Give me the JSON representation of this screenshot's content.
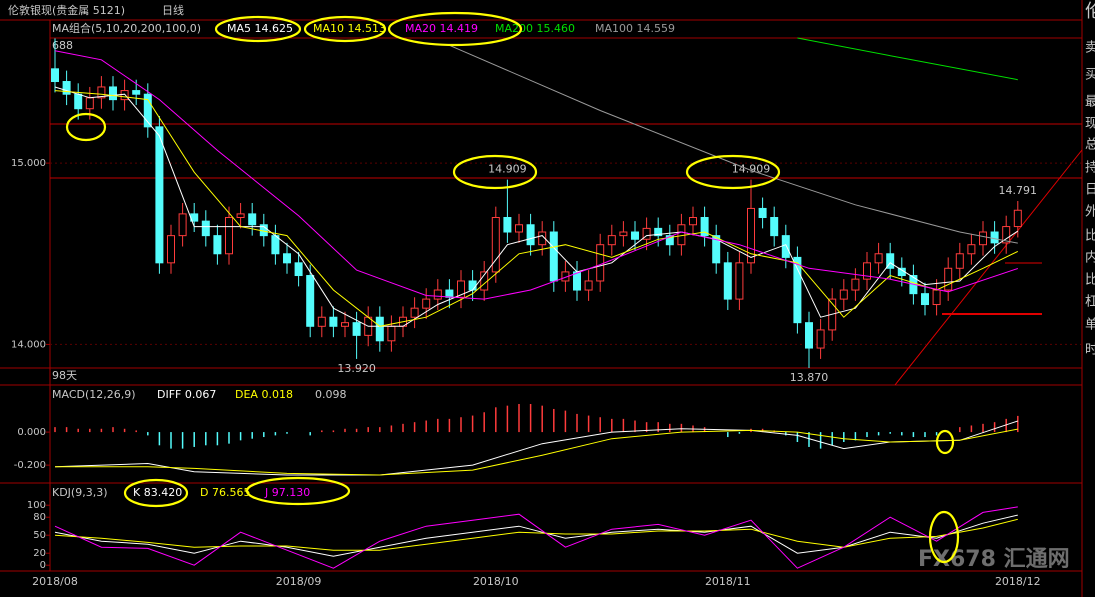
{
  "chart_data": [
    {
      "type": "candlestick",
      "title": "伦敦银现(贵金属 5121)",
      "period": "日线",
      "indicator": "MA组合(5,10,20,200,100,0)",
      "span_label": "98天",
      "top_label": "688",
      "categories": [
        "2018/08",
        null,
        null,
        null,
        null,
        null,
        null,
        null,
        null,
        null,
        null,
        null,
        null,
        null,
        null,
        null,
        null,
        null,
        null,
        null,
        null,
        "2018/09",
        null,
        null,
        null,
        null,
        null,
        null,
        null,
        null,
        null,
        null,
        null,
        null,
        null,
        null,
        null,
        null,
        "2018/10",
        null,
        null,
        null,
        null,
        null,
        null,
        null,
        null,
        null,
        null,
        null,
        null,
        null,
        null,
        null,
        null,
        null,
        null,
        null,
        "2018/11",
        null,
        null,
        null,
        null,
        null,
        null,
        null,
        null,
        null,
        null,
        null,
        null,
        null,
        null,
        null,
        null,
        null,
        null,
        null,
        null,
        null,
        null,
        null,
        null,
        "2018/12"
      ],
      "open": [
        15.52,
        15.45,
        15.38,
        15.3,
        15.36,
        15.42,
        15.35,
        15.4,
        15.38,
        15.2,
        14.45,
        14.6,
        14.72,
        14.68,
        14.6,
        14.5,
        14.7,
        14.72,
        14.66,
        14.6,
        14.5,
        14.45,
        14.38,
        14.1,
        14.15,
        14.1,
        14.12,
        14.05,
        14.15,
        14.02,
        14.1,
        14.15,
        14.2,
        14.25,
        14.3,
        14.26,
        14.35,
        14.3,
        14.4,
        14.7,
        14.62,
        14.66,
        14.55,
        14.62,
        14.35,
        14.4,
        14.3,
        14.35,
        14.55,
        14.6,
        14.62,
        14.58,
        14.64,
        14.6,
        14.55,
        14.66,
        14.7,
        14.6,
        14.45,
        14.25,
        14.45,
        14.75,
        14.7,
        14.6,
        14.48,
        14.12,
        13.98,
        14.08,
        14.25,
        14.3,
        14.36,
        14.45,
        14.5,
        14.42,
        14.38,
        14.28,
        14.22,
        14.3,
        14.42,
        14.5,
        14.55,
        14.62,
        14.56,
        14.65
      ],
      "high": [
        15.688,
        15.51,
        15.44,
        15.42,
        15.48,
        15.48,
        15.46,
        15.46,
        15.44,
        15.26,
        14.66,
        14.78,
        14.78,
        14.74,
        14.66,
        14.76,
        14.78,
        14.78,
        14.72,
        14.66,
        14.56,
        14.51,
        14.44,
        14.21,
        14.21,
        14.18,
        14.18,
        14.21,
        14.21,
        14.16,
        14.21,
        14.26,
        14.31,
        14.36,
        14.36,
        14.41,
        14.41,
        14.46,
        14.76,
        14.909,
        14.72,
        14.72,
        14.68,
        14.68,
        14.46,
        14.46,
        14.41,
        14.61,
        14.66,
        14.68,
        14.68,
        14.7,
        14.7,
        14.66,
        14.72,
        14.76,
        14.76,
        14.66,
        14.51,
        14.51,
        14.909,
        14.81,
        14.76,
        14.66,
        14.54,
        14.18,
        14.14,
        14.31,
        14.36,
        14.42,
        14.51,
        14.56,
        14.56,
        14.48,
        14.44,
        14.34,
        14.36,
        14.48,
        14.56,
        14.61,
        14.68,
        14.68,
        14.71,
        14.791
      ],
      "low": [
        15.39,
        15.32,
        15.24,
        15.24,
        15.3,
        15.29,
        15.29,
        15.32,
        15.14,
        14.39,
        14.39,
        14.54,
        14.62,
        14.54,
        14.44,
        14.44,
        14.64,
        14.6,
        14.54,
        14.44,
        14.39,
        14.32,
        14.04,
        14.04,
        14.04,
        14.04,
        13.92,
        13.99,
        13.96,
        13.96,
        14.04,
        14.09,
        14.14,
        14.19,
        14.2,
        14.2,
        14.24,
        14.24,
        14.34,
        14.56,
        14.56,
        14.49,
        14.49,
        14.29,
        14.29,
        14.24,
        14.24,
        14.29,
        14.49,
        14.54,
        14.52,
        14.52,
        14.54,
        14.49,
        14.49,
        14.6,
        14.54,
        14.39,
        14.19,
        14.19,
        14.39,
        14.64,
        14.54,
        14.42,
        14.06,
        13.87,
        13.92,
        14.02,
        14.19,
        14.24,
        14.3,
        14.39,
        14.36,
        14.32,
        14.22,
        14.16,
        14.16,
        14.24,
        14.36,
        14.44,
        14.49,
        14.5,
        14.5,
        14.59
      ],
      "close": [
        15.45,
        15.38,
        15.3,
        15.36,
        15.42,
        15.35,
        15.4,
        15.38,
        15.2,
        14.45,
        14.6,
        14.72,
        14.68,
        14.6,
        14.5,
        14.7,
        14.72,
        14.66,
        14.6,
        14.5,
        14.45,
        14.38,
        14.1,
        14.15,
        14.1,
        14.12,
        14.05,
        14.15,
        14.02,
        14.1,
        14.15,
        14.2,
        14.25,
        14.3,
        14.26,
        14.35,
        14.3,
        14.4,
        14.7,
        14.62,
        14.66,
        14.55,
        14.62,
        14.35,
        14.4,
        14.3,
        14.35,
        14.55,
        14.6,
        14.62,
        14.58,
        14.64,
        14.6,
        14.55,
        14.66,
        14.7,
        14.6,
        14.45,
        14.25,
        14.45,
        14.75,
        14.7,
        14.6,
        14.48,
        14.12,
        13.98,
        14.08,
        14.25,
        14.3,
        14.36,
        14.45,
        14.5,
        14.42,
        14.38,
        14.28,
        14.22,
        14.3,
        14.42,
        14.5,
        14.55,
        14.62,
        14.56,
        14.65,
        14.74
      ],
      "up_color": "#ff3c3c",
      "down_color": "#54fcfc",
      "ylim": [
        13.87,
        15.69
      ],
      "yticks": [
        {
          "value": 15,
          "label": "15.000"
        },
        {
          "value": 14,
          "label": "14.000"
        }
      ],
      "grid": true,
      "series": [
        {
          "name": "MA5",
          "latest_label": "14.625",
          "color": "#ffffff",
          "x": [
            0,
            3,
            6,
            9,
            12,
            15,
            18,
            21,
            24,
            27,
            30,
            33,
            36,
            39,
            42,
            45,
            48,
            51,
            54,
            57,
            60,
            63,
            66,
            69,
            72,
            75,
            78,
            81,
            83
          ],
          "values": [
            15.42,
            15.36,
            15.38,
            15.15,
            14.65,
            14.65,
            14.65,
            14.5,
            14.2,
            14.1,
            14.1,
            14.22,
            14.3,
            14.55,
            14.6,
            14.4,
            14.45,
            14.6,
            14.62,
            14.58,
            14.48,
            14.55,
            14.15,
            14.2,
            14.45,
            14.33,
            14.35,
            14.54,
            14.625
          ]
        },
        {
          "name": "MA10",
          "latest_label": "14.513",
          "color": "#ffff00",
          "x": [
            0,
            4,
            8,
            12,
            16,
            20,
            24,
            28,
            32,
            36,
            40,
            44,
            48,
            52,
            56,
            60,
            64,
            68,
            72,
            76,
            80,
            83
          ],
          "values": [
            15.4,
            15.38,
            15.35,
            14.95,
            14.65,
            14.6,
            14.3,
            14.1,
            14.15,
            14.28,
            14.5,
            14.55,
            14.48,
            14.58,
            14.62,
            14.5,
            14.45,
            14.15,
            14.38,
            14.3,
            14.42,
            14.513
          ]
        },
        {
          "name": "MA20",
          "latest_label": "14.419",
          "color": "#ff00ff",
          "x": [
            0,
            4,
            9,
            14,
            21,
            26,
            32,
            37,
            41,
            47,
            54,
            59,
            65,
            72,
            77,
            83
          ],
          "values": [
            15.62,
            15.57,
            15.35,
            15.07,
            14.71,
            14.41,
            14.27,
            14.25,
            14.3,
            14.44,
            14.62,
            14.55,
            14.42,
            14.36,
            14.29,
            14.419
          ]
        },
        {
          "name": "MA200",
          "latest_label": "15.460",
          "color": "#00e000",
          "x": [
            64,
            73,
            83
          ],
          "values": [
            15.69,
            15.58,
            15.46
          ]
        },
        {
          "name": "MA100",
          "latest_label": "14.559",
          "color": "#9a9a9a",
          "x": [
            34,
            47,
            60,
            69,
            78,
            83
          ],
          "values": [
            15.65,
            15.29,
            14.96,
            14.77,
            14.62,
            14.559
          ]
        }
      ],
      "annotations": [
        {
          "x": 39,
          "y": 14.909,
          "text": "14.909"
        },
        {
          "x": 60,
          "y": 14.909,
          "text": "14.909"
        },
        {
          "x": 26,
          "y": 13.92,
          "text": "13.920"
        },
        {
          "x": 65,
          "y": 13.87,
          "text": "13.870"
        },
        {
          "x": 83,
          "y": 14.791,
          "text": "14.791"
        }
      ]
    },
    {
      "type": "macd",
      "title": "MACD(12,26,9)",
      "histogram_label": "0.098",
      "histogram": [
        0.03,
        0.03,
        0.02,
        0.02,
        0.02,
        0.03,
        0.02,
        0.01,
        -0.02,
        -0.08,
        -0.1,
        -0.1,
        -0.09,
        -0.08,
        -0.08,
        -0.07,
        -0.05,
        -0.04,
        -0.03,
        -0.02,
        -0.01,
        0.0,
        -0.02,
        0.01,
        0.01,
        0.02,
        0.02,
        0.03,
        0.03,
        0.04,
        0.05,
        0.06,
        0.07,
        0.08,
        0.08,
        0.09,
        0.1,
        0.12,
        0.15,
        0.16,
        0.17,
        0.17,
        0.16,
        0.14,
        0.13,
        0.11,
        0.1,
        0.09,
        0.08,
        0.08,
        0.07,
        0.06,
        0.06,
        0.05,
        0.05,
        0.04,
        0.03,
        0.0,
        -0.03,
        -0.01,
        0.02,
        0.02,
        0.01,
        -0.02,
        -0.06,
        -0.09,
        -0.1,
        -0.08,
        -0.06,
        -0.05,
        -0.03,
        -0.02,
        -0.01,
        -0.02,
        -0.03,
        -0.03,
        -0.02,
        0.0,
        0.03,
        0.04,
        0.05,
        0.06,
        0.08,
        0.098
      ],
      "up_color": "#ff3c3c",
      "down_color": "#54fcfc",
      "ylim": [
        -0.29,
        0.285
      ],
      "yticks": [
        {
          "value": 0,
          "label": "0.000"
        },
        {
          "value": -0.2,
          "label": "-0.200"
        }
      ],
      "series": [
        {
          "name": "DIFF",
          "latest_label": "0.067",
          "color": "#ffffff",
          "x": [
            0,
            8,
            12,
            20,
            28,
            36,
            42,
            48,
            54,
            60,
            64,
            68,
            72,
            78,
            83
          ],
          "values": [
            -0.21,
            -0.19,
            -0.24,
            -0.26,
            -0.26,
            -0.2,
            -0.07,
            0.0,
            0.02,
            0.01,
            -0.02,
            -0.1,
            -0.06,
            -0.05,
            0.067
          ]
        },
        {
          "name": "DEA",
          "latest_label": "0.018",
          "color": "#ffff00",
          "x": [
            0,
            8,
            12,
            20,
            28,
            36,
            42,
            48,
            54,
            60,
            64,
            68,
            72,
            78,
            83
          ],
          "values": [
            -0.21,
            -0.21,
            -0.22,
            -0.25,
            -0.26,
            -0.23,
            -0.14,
            -0.04,
            0.0,
            0.01,
            0.0,
            -0.04,
            -0.06,
            -0.05,
            0.018
          ]
        }
      ]
    },
    {
      "type": "kdj",
      "title": "KDJ(9,3,3)",
      "ylim": [
        -8,
        117
      ],
      "yticks": [
        100,
        80,
        50,
        20,
        0
      ],
      "series": [
        {
          "name": "K",
          "latest_label": "83.420",
          "color": "#ffffff",
          "x": [
            0,
            4,
            8,
            12,
            16,
            20,
            24,
            28,
            32,
            36,
            40,
            44,
            48,
            52,
            56,
            60,
            64,
            68,
            72,
            76,
            80,
            83
          ],
          "values": [
            55,
            40,
            35,
            20,
            40,
            30,
            15,
            30,
            45,
            55,
            65,
            45,
            55,
            60,
            55,
            65,
            20,
            30,
            55,
            45,
            70,
            83.42
          ]
        },
        {
          "name": "D",
          "latest_label": "76.565",
          "color": "#ffff00",
          "x": [
            0,
            4,
            8,
            12,
            16,
            20,
            24,
            28,
            32,
            36,
            40,
            44,
            48,
            52,
            56,
            60,
            64,
            68,
            72,
            76,
            80,
            83
          ],
          "values": [
            50,
            45,
            38,
            30,
            32,
            32,
            25,
            25,
            35,
            45,
            55,
            52,
            52,
            57,
            57,
            60,
            40,
            30,
            45,
            48,
            62,
            76.565
          ]
        },
        {
          "name": "J",
          "latest_label": "97.130",
          "color": "#ff00ff",
          "x": [
            0,
            4,
            8,
            12,
            16,
            20,
            24,
            28,
            32,
            36,
            40,
            44,
            48,
            52,
            56,
            60,
            64,
            68,
            72,
            76,
            80,
            83
          ],
          "values": [
            65,
            30,
            28,
            0,
            55,
            25,
            -5,
            40,
            65,
            75,
            85,
            30,
            60,
            68,
            50,
            75,
            -5,
            30,
            80,
            40,
            88,
            97.13
          ]
        }
      ]
    }
  ],
  "sidebar": [
    "伦",
    "卖",
    "买",
    "最",
    "现",
    "总",
    "持",
    "日",
    "外",
    "比",
    "内",
    "比",
    "杠",
    "单",
    "时"
  ],
  "watermark": "FX678 汇通网"
}
